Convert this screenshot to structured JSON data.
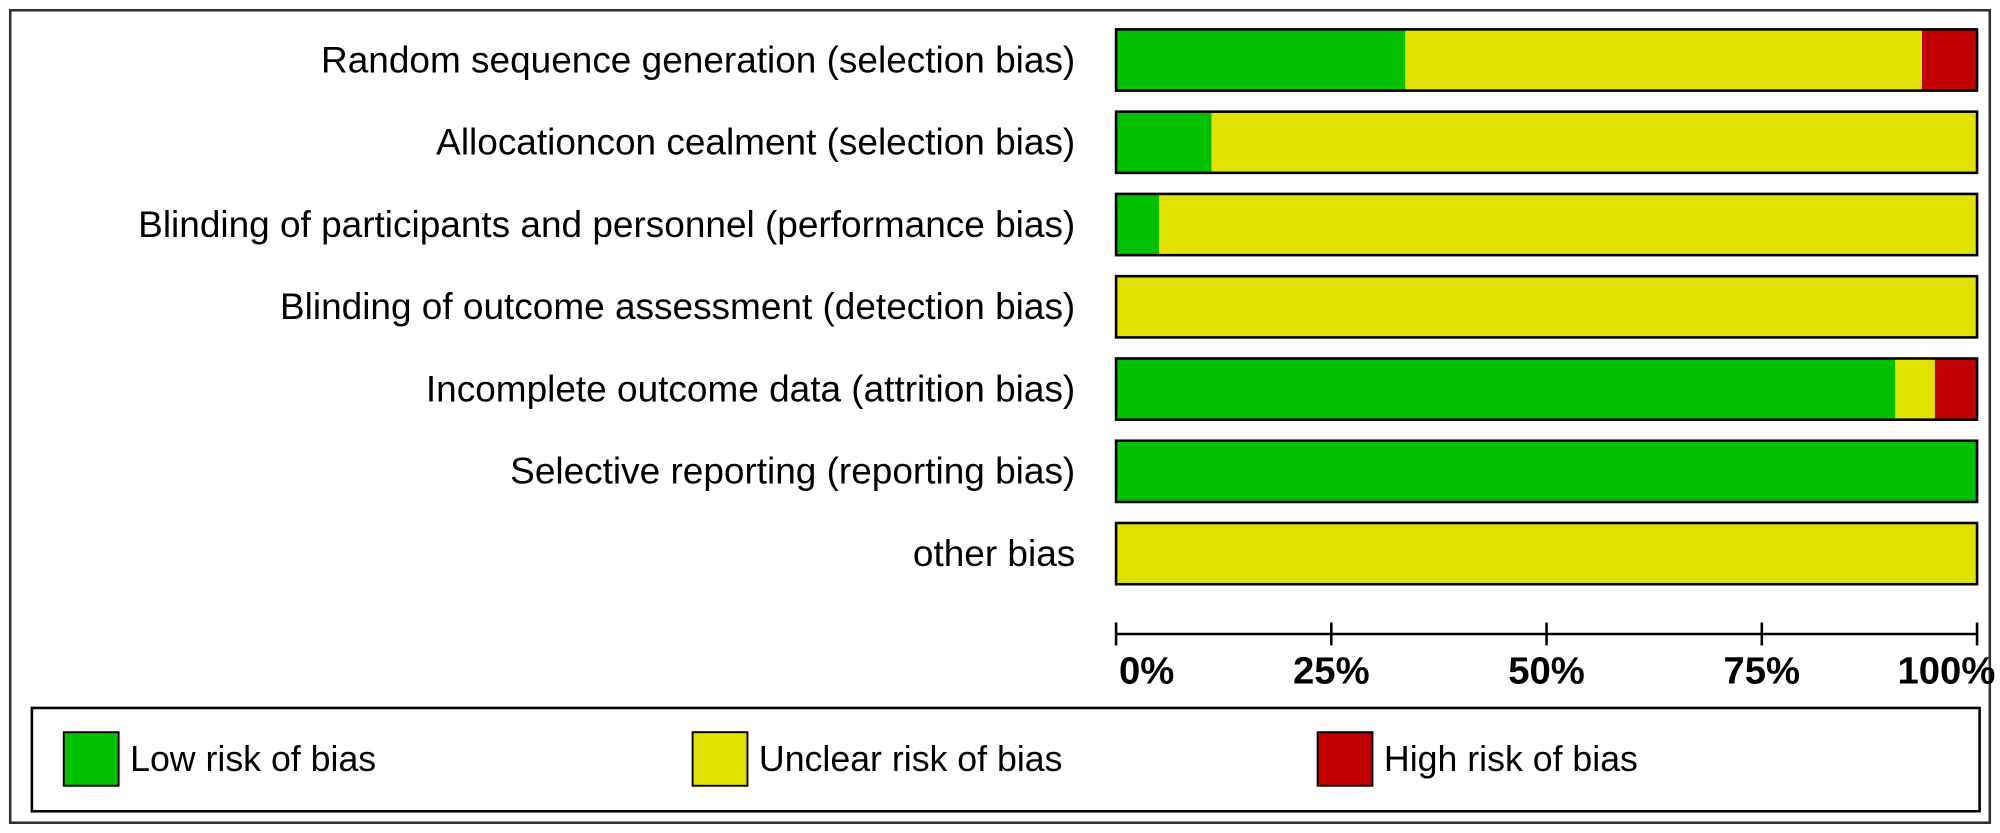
{
  "chart_data": {
    "type": "stacked-barh",
    "categories": [
      "Random sequence generation (selection bias)",
      "Allocationcon cealment (selection bias)",
      "Blinding of participants and personnel (performance bias)",
      "Blinding of outcome assessment (detection bias)",
      "Incomplete outcome data (attrition bias)",
      "Selective reporting (reporting bias)",
      "other bias"
    ],
    "series": [
      {
        "name": "Low risk of bias",
        "color": "#00c000",
        "values": [
          33.6,
          11.1,
          5,
          0,
          90.5,
          100,
          0
        ]
      },
      {
        "name": "Unclear risk of bias",
        "color": "#e2e200",
        "values": [
          60,
          88.9,
          95,
          100,
          4.6,
          0,
          100
        ]
      },
      {
        "name": "High risk of bias",
        "color": "#c00000",
        "values": [
          6.4,
          0,
          0,
          0,
          4.9,
          0,
          0
        ]
      }
    ],
    "xlim": [
      0,
      100
    ],
    "xticks": [
      {
        "value": 0,
        "label": "0%"
      },
      {
        "value": 25,
        "label": "25%"
      },
      {
        "value": 50,
        "label": "50%"
      },
      {
        "value": 75,
        "label": "75%"
      },
      {
        "value": 100,
        "label": "100%"
      }
    ]
  }
}
